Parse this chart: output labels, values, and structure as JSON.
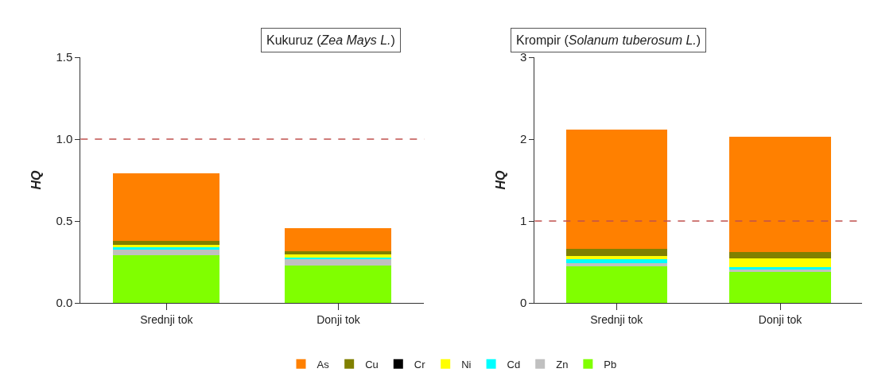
{
  "chart_data": [
    {
      "type": "bar",
      "title": "Kukuruz (Zea Mays L.)",
      "ylabel": "HQ",
      "categories": [
        "Srednji tok",
        "Donji tok"
      ],
      "stacked": true,
      "legend": "bottom",
      "ylim": [
        0,
        1.5
      ],
      "yticks": [
        {
          "value": 0,
          "label": "0.0"
        },
        {
          "value": 0.5,
          "label": "0.5"
        },
        {
          "value": 1,
          "label": "1.0"
        },
        {
          "value": 1.5,
          "label": "1.5"
        }
      ],
      "ref_lines": [
        {
          "axis": "y",
          "value": 1,
          "color": "#c0504d",
          "line_style": "dashed"
        }
      ],
      "series": [
        {
          "name": "Pb",
          "color": "#80ff00",
          "values": [
            0.29,
            0.23
          ]
        },
        {
          "name": "Zn",
          "color": "#c0c0c0",
          "values": [
            0.04,
            0.039
          ]
        },
        {
          "name": "Cd",
          "color": "#00ffff",
          "values": [
            0.008,
            0.008
          ]
        },
        {
          "name": "Ni",
          "color": "#ffff00",
          "values": [
            0.017,
            0.017
          ]
        },
        {
          "name": "Cr",
          "color": "#000000",
          "values": [
            0,
            0
          ]
        },
        {
          "name": "Cu",
          "color": "#808000",
          "values": [
            0.022,
            0.022
          ]
        },
        {
          "name": "As",
          "color": "#ff8000",
          "values": [
            0.416,
            0.138
          ]
        }
      ]
    },
    {
      "type": "bar",
      "title": "Krompir (Solanum tuberosum L.)",
      "ylabel": "HQ",
      "categories": [
        "Srednji tok",
        "Donji tok"
      ],
      "stacked": true,
      "legend": "bottom",
      "ylim": [
        0,
        3
      ],
      "yticks": [
        0,
        1,
        2,
        3
      ],
      "ref_lines": [
        {
          "axis": "y",
          "value": 1,
          "color": "#c0504d",
          "line_style": "dashed"
        }
      ],
      "series": [
        {
          "color": "#80ff00",
          "values": [
            0.45,
            0.38
          ]
        },
        {
          "color": "#c0c0c0",
          "values": [
            0.04,
            0.03
          ]
        },
        {
          "color": "#00ffff",
          "values": [
            0.04,
            0.03
          ]
        },
        {
          "color": "#ffff00",
          "values": [
            0.04,
            0.1
          ]
        },
        {
          "color": "#808000",
          "values": [
            0.09,
            0.08
          ]
        },
        {
          "color": "#ff8000",
          "values": [
            1.46,
            1.41
          ]
        }
      ]
    }
  ]
}
